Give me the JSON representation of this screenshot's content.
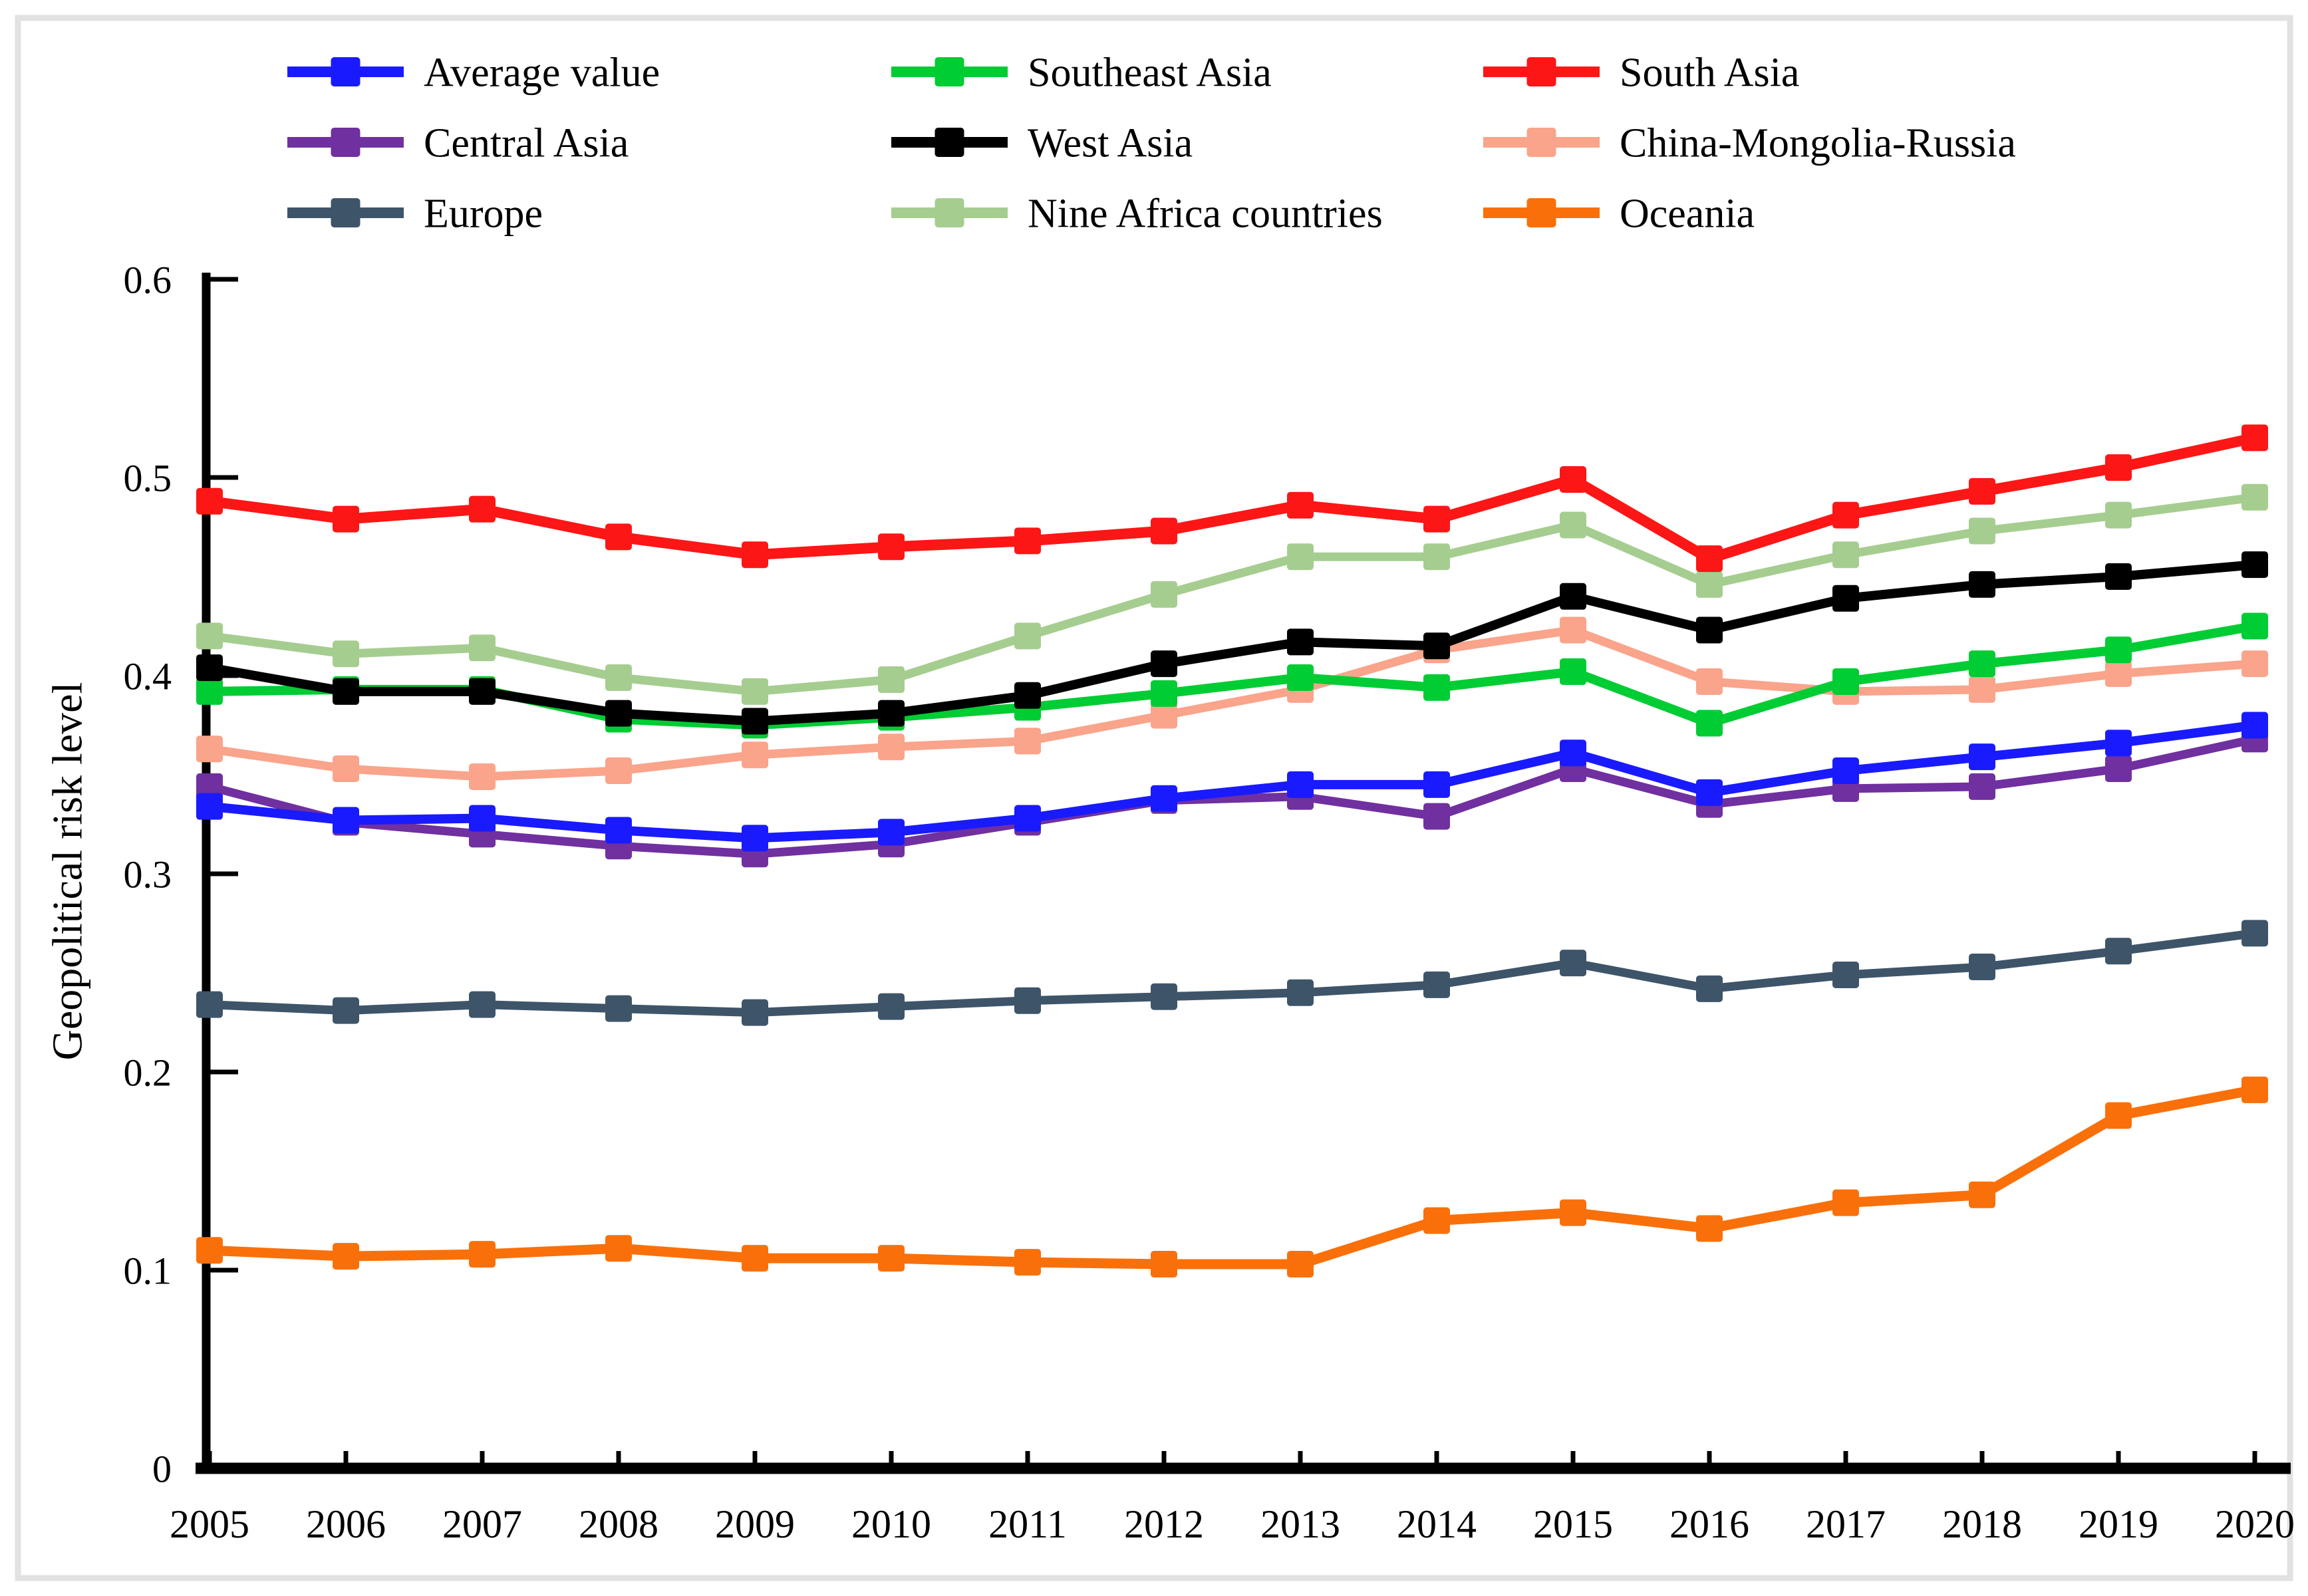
{
  "figure": {
    "background": "#ffffff",
    "border_color": "#e2e2e2"
  },
  "chart_data": {
    "type": "line",
    "title": "",
    "xlabel": "",
    "ylabel": "Geopolitical risk level",
    "ylim": [
      0,
      0.6
    ],
    "y_ticks": [
      0,
      0.1,
      0.2,
      0.3,
      0.4,
      0.5,
      0.6
    ],
    "y_tick_labels": [
      "0",
      "0.1",
      "0.2",
      "0.3",
      "0.4",
      "0.5",
      "0.6"
    ],
    "grid": false,
    "legend_position": "top",
    "marker": "square",
    "x": [
      2005,
      2006,
      2007,
      2008,
      2009,
      2010,
      2011,
      2012,
      2013,
      2014,
      2015,
      2016,
      2017,
      2018,
      2019,
      2020
    ],
    "series": [
      {
        "name": "Average value",
        "color": "#1a1aff",
        "values": [
          0.334,
          0.327,
          0.328,
          0.322,
          0.318,
          0.321,
          0.328,
          0.338,
          0.345,
          0.345,
          0.361,
          0.341,
          0.352,
          0.359,
          0.366,
          0.375
        ]
      },
      {
        "name": "Southeast Asia",
        "color": "#00cc33",
        "values": [
          0.392,
          0.393,
          0.393,
          0.378,
          0.375,
          0.379,
          0.384,
          0.391,
          0.399,
          0.394,
          0.402,
          0.376,
          0.397,
          0.406,
          0.413,
          0.425
        ]
      },
      {
        "name": "South Asia",
        "color": "#fd1616",
        "values": [
          0.488,
          0.479,
          0.484,
          0.47,
          0.461,
          0.465,
          0.468,
          0.473,
          0.486,
          0.479,
          0.499,
          0.459,
          0.481,
          0.493,
          0.505,
          0.52
        ]
      },
      {
        "name": "Central Asia",
        "color": "#7030a0",
        "values": [
          0.344,
          0.326,
          0.32,
          0.314,
          0.31,
          0.315,
          0.326,
          0.337,
          0.339,
          0.329,
          0.353,
          0.335,
          0.343,
          0.344,
          0.353,
          0.368
        ]
      },
      {
        "name": "West Asia",
        "color": "#000000",
        "values": [
          0.404,
          0.392,
          0.392,
          0.381,
          0.377,
          0.381,
          0.39,
          0.406,
          0.417,
          0.415,
          0.44,
          0.423,
          0.439,
          0.446,
          0.45,
          0.456
        ]
      },
      {
        "name": "China-Mongolia-Russia",
        "color": "#f9a48b",
        "values": [
          0.363,
          0.353,
          0.349,
          0.352,
          0.36,
          0.364,
          0.367,
          0.38,
          0.393,
          0.413,
          0.423,
          0.397,
          0.392,
          0.393,
          0.401,
          0.406
        ]
      },
      {
        "name": "Europe",
        "color": "#3e5469",
        "values": [
          0.234,
          0.231,
          0.234,
          0.232,
          0.23,
          0.233,
          0.236,
          0.238,
          0.24,
          0.244,
          0.255,
          0.242,
          0.249,
          0.253,
          0.261,
          0.27
        ]
      },
      {
        "name": "Nine Africa countries",
        "color": "#a6cd90",
        "values": [
          0.42,
          0.411,
          0.414,
          0.399,
          0.392,
          0.398,
          0.42,
          0.441,
          0.46,
          0.46,
          0.476,
          0.446,
          0.461,
          0.473,
          0.481,
          0.49
        ]
      },
      {
        "name": "Oceania",
        "color": "#f9700a",
        "values": [
          0.11,
          0.107,
          0.108,
          0.111,
          0.106,
          0.106,
          0.104,
          0.103,
          0.103,
          0.125,
          0.129,
          0.121,
          0.134,
          0.138,
          0.178,
          0.191
        ]
      }
    ],
    "legend_rows": [
      [
        "Average value",
        "Southeast Asia",
        "South Asia"
      ],
      [
        "Central Asia",
        "West Asia",
        "China-Mongolia-Russia"
      ],
      [
        "Europe",
        "Nine Africa countries",
        "Oceania"
      ]
    ]
  }
}
